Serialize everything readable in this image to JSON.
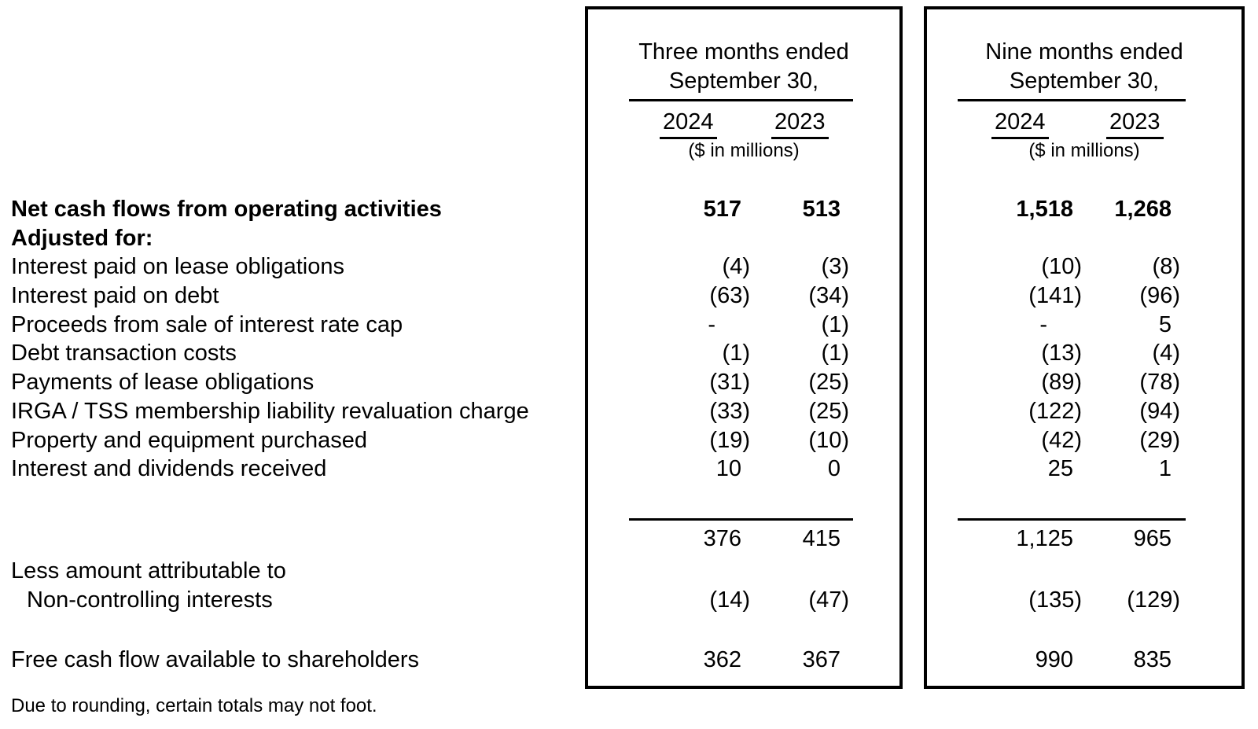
{
  "panels": [
    {
      "title_line1": "Three months ended",
      "title_line2": "September 30,",
      "col_headers": [
        "2024",
        "2023"
      ],
      "units": "($ in millions)"
    },
    {
      "title_line1": "Nine months ended",
      "title_line2": "September 30,",
      "col_headers": [
        "2024",
        "2023"
      ],
      "units": "($ in millions)"
    }
  ],
  "table": {
    "rows": [
      {
        "label": "Net cash flows from operating activities",
        "bold": true,
        "values": [
          "517",
          "513",
          "1,518",
          "1,268"
        ]
      },
      {
        "label": "Adjusted for:",
        "bold": true
      },
      {
        "label": "Interest paid on lease obligations",
        "values": [
          "(4)",
          "(3)",
          "(10)",
          "(8)"
        ]
      },
      {
        "label": "Interest paid on debt",
        "values": [
          "(63)",
          "(34)",
          "(141)",
          "(96)"
        ]
      },
      {
        "label": "Proceeds from sale of interest rate cap",
        "values": [
          "-",
          "(1)",
          "-",
          "5"
        ]
      },
      {
        "label": "Debt transaction costs",
        "values": [
          "(1)",
          "(1)",
          "(13)",
          "(4)"
        ]
      },
      {
        "label": "Payments of lease obligations",
        "values": [
          "(31)",
          "(25)",
          "(89)",
          "(78)"
        ]
      },
      {
        "label": "IRGA / TSS membership liability revaluation charge",
        "values": [
          "(33)",
          "(25)",
          "(122)",
          "(94)"
        ]
      },
      {
        "label": "Property and equipment purchased",
        "values": [
          "(19)",
          "(10)",
          "(42)",
          "(29)"
        ]
      },
      {
        "label": "Interest and dividends received",
        "values": [
          "10",
          "0",
          "25",
          "1"
        ]
      },
      {
        "kind": "spacer"
      },
      {
        "kind": "subtotal",
        "values": [
          "376",
          "415",
          "1,125",
          "965"
        ]
      },
      {
        "label": "Less amount attributable to"
      },
      {
        "label": "Non-controlling interests",
        "indent": true,
        "values": [
          "(14)",
          "(47)",
          "(135)",
          "(129)"
        ]
      },
      {
        "kind": "spacer2"
      },
      {
        "label": "Free cash flow available to shareholders",
        "values": [
          "362",
          "367",
          "990",
          "835"
        ]
      }
    ]
  },
  "footnote": "Due to rounding, certain totals may not foot."
}
